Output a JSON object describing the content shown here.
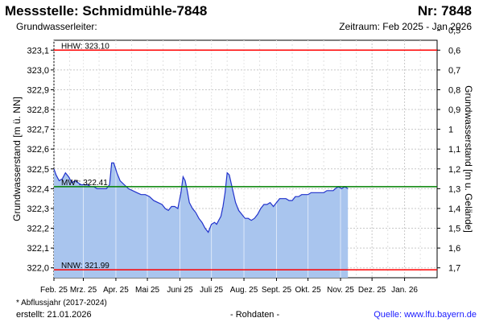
{
  "header": {
    "title": "Messstelle: Schmidmühle-7848",
    "nr": "Nr: 7848",
    "aquifer": "Grundwasserleiter:",
    "period": "Zeitraum: Feb 2025 - Jan 2026"
  },
  "footer": {
    "footnote": "* Abflussjahr (2017-2024)",
    "created": "erstellt:  21.01.2026",
    "rawdata": "- Rohdaten -",
    "source": "Quelle: www.lfu.bayern.de"
  },
  "chart_data": {
    "type": "area",
    "ylabel": "Grundwasserstand [m ü. NN]",
    "ylabel_right": "Grundwasserstand [m u. Gelände]",
    "ylim": [
      321.95,
      323.15
    ],
    "yticks": [
      322.0,
      322.1,
      322.2,
      322.3,
      322.4,
      322.5,
      322.6,
      322.7,
      322.8,
      322.9,
      323.0,
      323.1
    ],
    "ytick_labels": [
      "322,0",
      "322,1",
      "322,2",
      "322,3",
      "322,4",
      "322,5",
      "322,6",
      "322,7",
      "322,8",
      "322,9",
      "323,0",
      "323,1"
    ],
    "y2ticks": [
      1.7,
      1.6,
      1.5,
      1.4,
      1.3,
      1.2,
      1.1,
      1.0,
      0.9,
      0.8,
      0.7,
      0.6,
      0.5
    ],
    "y2tick_labels": [
      "1,7",
      "1,6",
      "1,5",
      "1,4",
      "1,3",
      "1,2",
      "1,1",
      "1",
      "0,9",
      "0,8",
      "0,7",
      "0,6",
      "0,5"
    ],
    "y2_reference": 323.7,
    "xlim": [
      "2025-02-01",
      "2026-02-01"
    ],
    "xticks": [
      "2025-02-01",
      "2025-03-01",
      "2025-04-01",
      "2025-05-01",
      "2025-06-01",
      "2025-07-01",
      "2025-08-01",
      "2025-09-01",
      "2025-10-01",
      "2025-11-01",
      "2025-12-01",
      "2026-01-01"
    ],
    "xtick_labels": [
      "Feb. 25",
      "Mrz. 25",
      "Apr. 25",
      "Mai 25",
      "Juni 25",
      "Juli 25",
      "Aug. 25",
      "Sept. 25",
      "Okt. 25",
      "Nov. 25",
      "Dez. 25",
      "Jan. 26"
    ],
    "grid": true,
    "reference_lines": [
      {
        "label": "HHW: 323.10",
        "value": 323.1,
        "color": "#ff0000"
      },
      {
        "label": "MW*: 322.41",
        "value": 322.41,
        "color": "#008000"
      },
      {
        "label": "NNW: 321.99",
        "value": 321.99,
        "color": "#ff0000"
      }
    ],
    "series": [
      {
        "color": "#2233cc",
        "fill": "#a9c5ee",
        "x": [
          "2025-02-01",
          "2025-02-03",
          "2025-02-06",
          "2025-02-09",
          "2025-02-12",
          "2025-02-15",
          "2025-02-18",
          "2025-02-21",
          "2025-02-24",
          "2025-02-27",
          "2025-03-02",
          "2025-03-05",
          "2025-03-08",
          "2025-03-11",
          "2025-03-14",
          "2025-03-17",
          "2025-03-20",
          "2025-03-23",
          "2025-03-26",
          "2025-03-28",
          "2025-03-30",
          "2025-04-02",
          "2025-04-05",
          "2025-04-09",
          "2025-04-13",
          "2025-04-17",
          "2025-04-21",
          "2025-04-25",
          "2025-04-29",
          "2025-05-03",
          "2025-05-07",
          "2025-05-11",
          "2025-05-15",
          "2025-05-18",
          "2025-05-21",
          "2025-05-24",
          "2025-05-27",
          "2025-05-30",
          "2025-06-02",
          "2025-06-04",
          "2025-06-06",
          "2025-06-08",
          "2025-06-10",
          "2025-06-13",
          "2025-06-16",
          "2025-06-19",
          "2025-06-22",
          "2025-06-25",
          "2025-06-28",
          "2025-07-01",
          "2025-07-04",
          "2025-07-06",
          "2025-07-08",
          "2025-07-10",
          "2025-07-12",
          "2025-07-14",
          "2025-07-16",
          "2025-07-18",
          "2025-07-21",
          "2025-07-24",
          "2025-07-27",
          "2025-07-30",
          "2025-08-02",
          "2025-08-05",
          "2025-08-08",
          "2025-08-11",
          "2025-08-14",
          "2025-08-17",
          "2025-08-20",
          "2025-08-23",
          "2025-08-26",
          "2025-08-29",
          "2025-09-01",
          "2025-09-04",
          "2025-09-07",
          "2025-09-10",
          "2025-09-13",
          "2025-09-16",
          "2025-09-19",
          "2025-09-22",
          "2025-09-25",
          "2025-09-28",
          "2025-10-01",
          "2025-10-04",
          "2025-10-07",
          "2025-10-10",
          "2025-10-13",
          "2025-10-16",
          "2025-10-19",
          "2025-10-22",
          "2025-10-25",
          "2025-10-27",
          "2025-10-30",
          "2025-11-02",
          "2025-11-05",
          "2025-11-08"
        ],
        "y": [
          322.5,
          322.47,
          322.44,
          322.45,
          322.48,
          322.46,
          322.43,
          322.44,
          322.43,
          322.42,
          322.42,
          322.42,
          322.41,
          322.41,
          322.4,
          322.4,
          322.4,
          322.4,
          322.42,
          322.53,
          322.53,
          322.48,
          322.44,
          322.42,
          322.4,
          322.39,
          322.38,
          322.37,
          322.37,
          322.36,
          322.34,
          322.33,
          322.32,
          322.3,
          322.29,
          322.31,
          322.31,
          322.3,
          322.38,
          322.46,
          322.44,
          322.39,
          322.33,
          322.3,
          322.28,
          322.25,
          322.23,
          322.2,
          322.18,
          322.22,
          322.23,
          322.22,
          322.24,
          322.26,
          322.31,
          322.38,
          322.48,
          322.47,
          322.4,
          322.33,
          322.29,
          322.27,
          322.25,
          322.25,
          322.24,
          322.25,
          322.27,
          322.3,
          322.32,
          322.32,
          322.33,
          322.31,
          322.33,
          322.35,
          322.35,
          322.35,
          322.34,
          322.34,
          322.36,
          322.36,
          322.37,
          322.37,
          322.37,
          322.38,
          322.38,
          322.38,
          322.38,
          322.38,
          322.39,
          322.39,
          322.39,
          322.4,
          322.41,
          322.4,
          322.41,
          322.4
        ]
      }
    ]
  }
}
